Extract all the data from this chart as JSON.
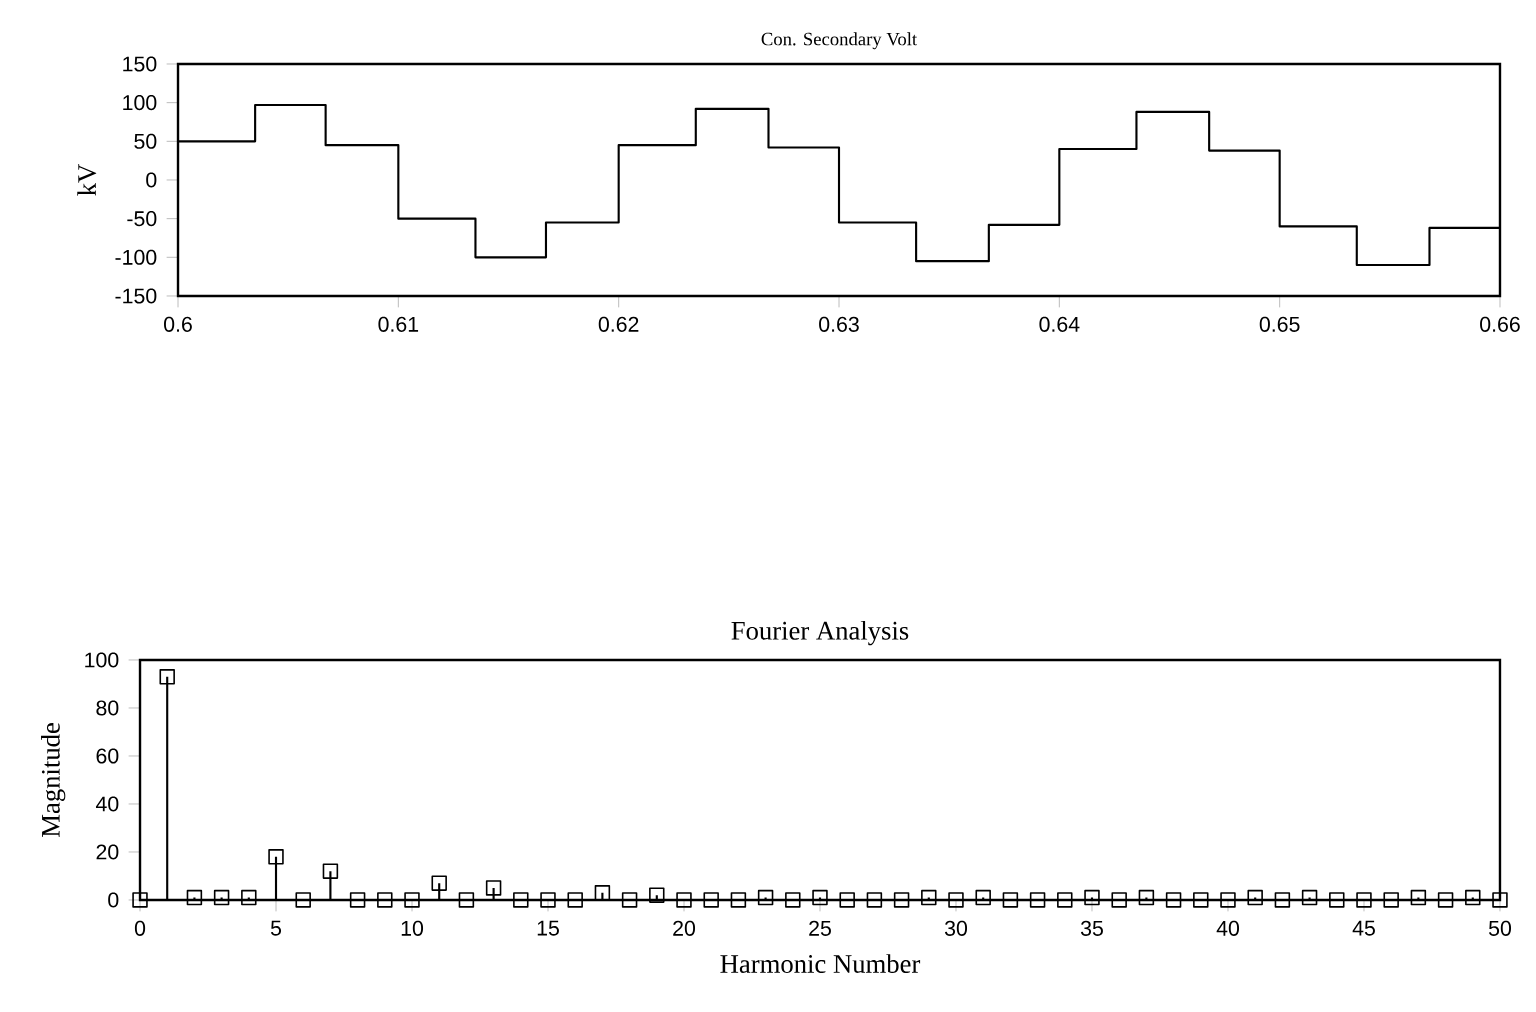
{
  "chart_data": [
    {
      "type": "step",
      "title": "Con. Secondary Volt",
      "ylabel": "kV",
      "x": [
        0.6,
        0.6035,
        0.6067,
        0.61,
        0.6135,
        0.6167,
        0.62,
        0.6235,
        0.6268,
        0.63,
        0.6335,
        0.6368,
        0.64,
        0.6435,
        0.6468,
        0.65,
        0.6535,
        0.6568,
        0.66
      ],
      "values": [
        50,
        97,
        45,
        -50,
        -100,
        -55,
        45,
        92,
        42,
        -55,
        -105,
        -58,
        40,
        88,
        38,
        -60,
        -110,
        -62,
        -62
      ],
      "xlim": [
        0.6,
        0.66
      ],
      "ylim": [
        -150,
        150
      ],
      "xticks": [
        0.6,
        0.61,
        0.62,
        0.63,
        0.64,
        0.65,
        0.66
      ],
      "yticks": [
        -150,
        -100,
        -50,
        0,
        50,
        100,
        150
      ]
    },
    {
      "type": "lollipop",
      "title": "Fourier Analysis",
      "xlabel": "Harmonic Number",
      "ylabel": "Magnitude",
      "marker": "square",
      "x": [
        0,
        1,
        2,
        3,
        4,
        5,
        6,
        7,
        8,
        9,
        10,
        11,
        12,
        13,
        14,
        15,
        16,
        17,
        18,
        19,
        20,
        21,
        22,
        23,
        24,
        25,
        26,
        27,
        28,
        29,
        30,
        31,
        32,
        33,
        34,
        35,
        36,
        37,
        38,
        39,
        40,
        41,
        42,
        43,
        44,
        45,
        46,
        47,
        48,
        49,
        50
      ],
      "values": [
        0,
        93,
        1,
        1,
        1,
        18,
        0,
        12,
        0,
        0,
        0,
        7,
        0,
        5,
        0,
        0,
        0,
        3,
        0,
        2,
        0,
        0,
        0,
        1,
        0,
        1,
        0,
        0,
        0,
        1,
        0,
        1,
        0,
        0,
        0,
        1,
        0,
        1,
        0,
        0,
        0,
        1,
        0,
        1,
        0,
        0,
        0,
        1,
        0,
        1,
        0
      ],
      "xlim": [
        0,
        50
      ],
      "ylim": [
        0,
        100
      ],
      "xticks": [
        0,
        5,
        10,
        15,
        20,
        25,
        30,
        35,
        40,
        45,
        50
      ],
      "yticks": [
        0,
        20,
        40,
        60,
        80,
        100
      ]
    }
  ]
}
